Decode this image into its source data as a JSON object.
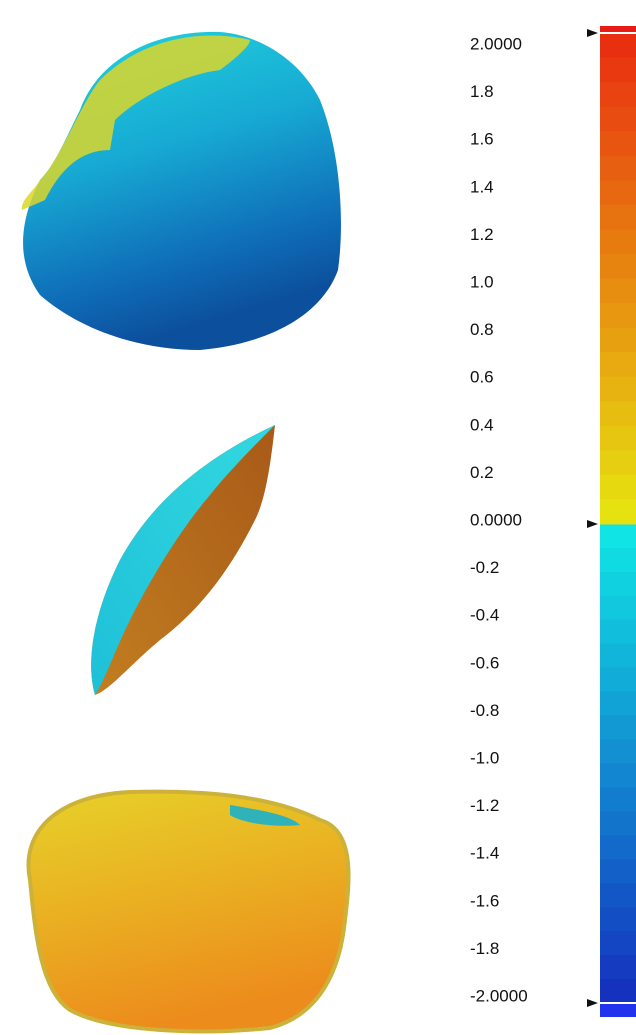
{
  "colorbar": {
    "ticks": [
      "2.0000",
      "1.8",
      "1.6",
      "1.4",
      "1.2",
      "1.0",
      "0.8",
      "0.6",
      "0.4",
      "0.2",
      "0.0000",
      "-0.2",
      "-0.4",
      "-0.6",
      "-0.8",
      "-1.0",
      "-1.2",
      "-1.4",
      "-1.6",
      "-1.8",
      "-2.0000"
    ]
  }
}
